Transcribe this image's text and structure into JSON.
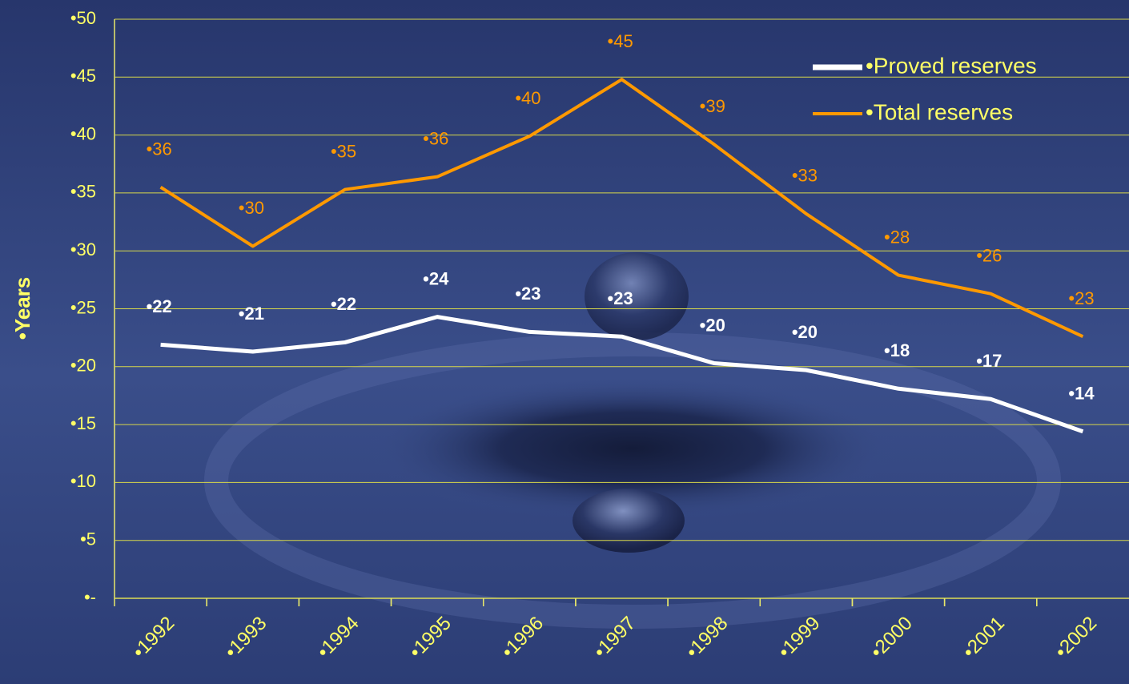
{
  "chart_data": {
    "type": "line",
    "ylabel": "•Years",
    "categories": [
      "•1992",
      "•1993",
      "•1994",
      "•1995",
      "•1996",
      "•1997",
      "•1998",
      "•1999",
      "•2000",
      "•2001",
      "•2002"
    ],
    "series": [
      {
        "name": "•Proved reserves",
        "color": "#ffffff",
        "values": [
          21.9,
          21.3,
          22.1,
          24.3,
          23.0,
          22.6,
          20.3,
          19.7,
          18.1,
          17.2,
          14.4
        ],
        "value_labels": [
          "•22",
          "•21",
          "•22",
          "•24",
          "•23",
          "•23",
          "•20",
          "•20",
          "•18",
          "•17",
          "•14"
        ]
      },
      {
        "name": "•Total reserves",
        "color": "#ff9900",
        "values": [
          35.5,
          30.4,
          35.3,
          36.4,
          39.9,
          44.8,
          39.2,
          33.2,
          27.9,
          26.3,
          22.6
        ],
        "value_labels": [
          "•36",
          "•30",
          "•35",
          "•36",
          "•40",
          "•45",
          "•39",
          "•33",
          "•28",
          "•26",
          "•23"
        ]
      }
    ],
    "ylim": [
      0,
      50
    ],
    "yticks": [
      {
        "value": 0,
        "label": "•-"
      },
      {
        "value": 5,
        "label": "•5"
      },
      {
        "value": 10,
        "label": "•10"
      },
      {
        "value": 15,
        "label": "•15"
      },
      {
        "value": 20,
        "label": "•20"
      },
      {
        "value": 25,
        "label": "•25"
      },
      {
        "value": 30,
        "label": "•30"
      },
      {
        "value": 35,
        "label": "•35"
      },
      {
        "value": 40,
        "label": "•40"
      },
      {
        "value": 45,
        "label": "•45"
      },
      {
        "value": 50,
        "label": "•50"
      }
    ],
    "grid": true,
    "legend": "upper right"
  }
}
